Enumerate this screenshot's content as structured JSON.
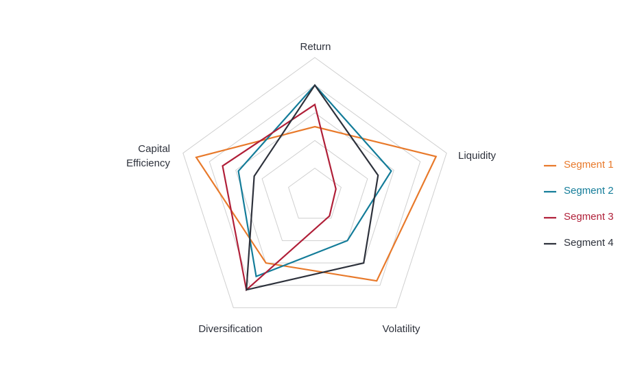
{
  "chart_data": {
    "type": "radar",
    "axes": [
      "Return",
      "Liquidity",
      "Volatility",
      "Diversification",
      "Capital Efficiency"
    ],
    "rlim": [
      0,
      5
    ],
    "rticks": [
      1,
      2,
      3,
      4,
      5
    ],
    "grid": true,
    "legend": "right",
    "series": [
      {
        "name": "Segment 1",
        "color": "#e8792a",
        "values": [
          2.5,
          4.6,
          3.8,
          3.0,
          4.5
        ]
      },
      {
        "name": "Segment 2",
        "color": "#137c99",
        "values": [
          4.0,
          2.9,
          2.0,
          3.6,
          2.9
        ]
      },
      {
        "name": "Segment 3",
        "color": "#b01f38",
        "values": [
          3.3,
          0.8,
          0.9,
          4.2,
          3.5
        ]
      },
      {
        "name": "Segment 4",
        "color": "#2d313b",
        "values": [
          4.0,
          2.4,
          3.0,
          4.2,
          2.3
        ]
      }
    ]
  }
}
